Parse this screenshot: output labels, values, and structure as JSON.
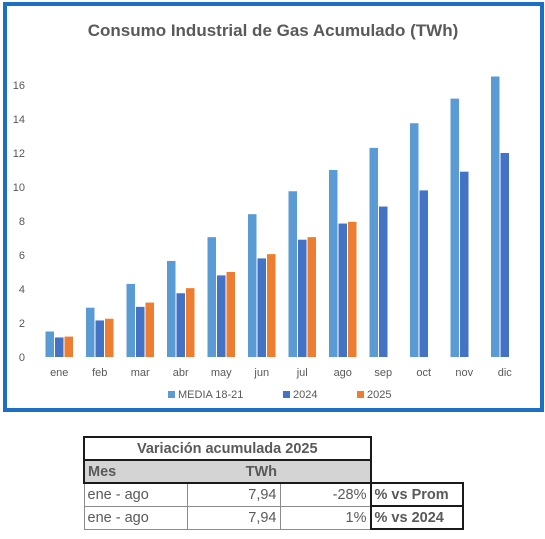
{
  "chart_data": {
    "type": "bar",
    "title": "Consumo Industrial de Gas Acumulado (TWh)",
    "categories": [
      "ene",
      "feb",
      "mar",
      "abr",
      "may",
      "jun",
      "jul",
      "ago",
      "sep",
      "oct",
      "nov",
      "dic"
    ],
    "series": [
      {
        "name": "MEDIA 18-21",
        "color": "#5b9bd5",
        "values": [
          1.5,
          2.9,
          4.3,
          5.65,
          7.05,
          8.4,
          9.75,
          11.0,
          12.3,
          13.75,
          15.2,
          16.5
        ]
      },
      {
        "name": "2024",
        "color": "#4472c4",
        "values": [
          1.15,
          2.15,
          2.95,
          3.75,
          4.8,
          5.8,
          6.9,
          7.85,
          8.85,
          9.8,
          10.9,
          12.0
        ]
      },
      {
        "name": "2025",
        "color": "#ed7d31",
        "values": [
          1.2,
          2.25,
          3.2,
          4.05,
          5.0,
          6.05,
          7.05,
          7.95,
          null,
          null,
          null,
          null
        ]
      }
    ],
    "ylim": [
      0,
      17
    ],
    "yticks": [
      0,
      2,
      4,
      6,
      8,
      10,
      12,
      14,
      16
    ],
    "grid": false,
    "legend": "bottom",
    "xlabel": "",
    "ylabel": ""
  },
  "table": {
    "title": "Variación acumulada 2025",
    "headers": [
      "Mes",
      "TWh"
    ],
    "rows": [
      {
        "period": "ene - ago",
        "value": "7,94",
        "variation": "-28%",
        "label": "% vs Prom"
      },
      {
        "period": "ene - ago",
        "value": "7,94",
        "variation": "1%",
        "label": "% vs 2024"
      }
    ]
  }
}
